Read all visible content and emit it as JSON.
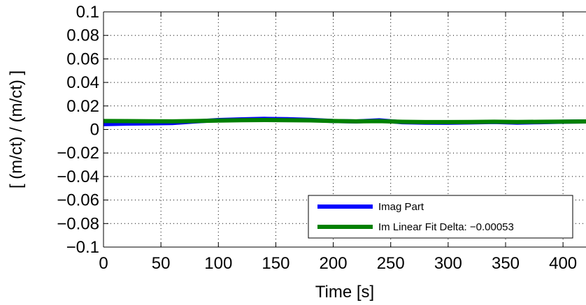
{
  "chart_data": {
    "type": "line",
    "xlabel": "Time [s]",
    "ylabel": "[ (m/ct) / (m/ct) ]",
    "xlim": [
      0,
      420
    ],
    "ylim": [
      -0.1,
      0.1
    ],
    "xticks": [
      0,
      50,
      100,
      150,
      200,
      250,
      300,
      350,
      400
    ],
    "xtick_labels": [
      "0",
      "50",
      "100",
      "150",
      "200",
      "250",
      "300",
      "350",
      "400"
    ],
    "yticks": [
      0.1,
      0.08,
      0.06,
      0.04,
      0.02,
      0,
      -0.02,
      -0.04,
      -0.06,
      -0.08,
      -0.1
    ],
    "ytick_labels": [
      "0.1",
      "0.08",
      "0.06",
      "0.04",
      "0.02",
      "0",
      "−0.02",
      "−0.04",
      "−0.06",
      "−0.08",
      "−0.1"
    ],
    "grid": true,
    "legend_position": "bottom-right",
    "series": [
      {
        "name": "Imag Part",
        "color": "#0000ff",
        "x": [
          0,
          20,
          40,
          60,
          80,
          100,
          120,
          140,
          160,
          180,
          200,
          220,
          240,
          260,
          280,
          300,
          320,
          340,
          360,
          380,
          400,
          420
        ],
        "y": [
          0.0045,
          0.005,
          0.0052,
          0.0055,
          0.0068,
          0.008,
          0.0086,
          0.009,
          0.0088,
          0.0082,
          0.0072,
          0.0068,
          0.0078,
          0.0062,
          0.0058,
          0.0057,
          0.006,
          0.0064,
          0.0058,
          0.0062,
          0.0066,
          0.0068
        ]
      },
      {
        "name": "Im Linear Fit Delta: −0.00053",
        "color": "#008000",
        "x": [
          0,
          20,
          40,
          60,
          80,
          100,
          120,
          140,
          160,
          180,
          200,
          220,
          240,
          260,
          280,
          300,
          320,
          340,
          360,
          380,
          400,
          420
        ],
        "y": [
          0.0072,
          0.0071,
          0.007,
          0.0069,
          0.0072,
          0.0076,
          0.0079,
          0.008,
          0.0079,
          0.0077,
          0.0072,
          0.0069,
          0.0071,
          0.0065,
          0.0063,
          0.0063,
          0.0064,
          0.0066,
          0.0064,
          0.0065,
          0.0067,
          0.0068
        ]
      }
    ]
  }
}
